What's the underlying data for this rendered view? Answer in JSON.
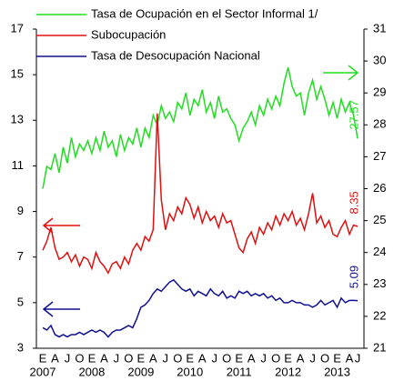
{
  "chart_data": {
    "type": "line",
    "categories": [
      "E",
      null,
      null,
      "A",
      null,
      null,
      "J",
      null,
      null,
      "O",
      null,
      null,
      "E",
      null,
      null,
      "A",
      null,
      null,
      "J",
      null,
      null,
      "O",
      null,
      null,
      "E",
      null,
      null,
      "A",
      null,
      null,
      "J",
      null,
      null,
      "O",
      null,
      null,
      "E",
      null,
      null,
      "A",
      null,
      null,
      "J",
      null,
      null,
      "O",
      null,
      null,
      "E",
      null,
      null,
      "A",
      null,
      null,
      "J",
      null,
      null,
      "O",
      null,
      null,
      "E",
      null,
      null,
      "A",
      null,
      null,
      "J",
      null,
      null,
      "O",
      null,
      null,
      "E",
      null,
      null,
      "A",
      null,
      "J"
    ],
    "years": [
      "2007",
      "2008",
      "2009",
      "2010",
      "2011",
      "2012",
      "2013"
    ],
    "ylim": [
      3,
      17
    ],
    "yticks": [
      3,
      5,
      7,
      9,
      11,
      13,
      15,
      17
    ],
    "y2lim": [
      21,
      31
    ],
    "y2ticks": [
      21,
      22,
      23,
      24,
      25,
      26,
      27,
      28,
      29,
      30,
      31
    ],
    "series": [
      {
        "name": "Tasa de Ocupación en el Sector Informal 1/",
        "color": "#22dd22",
        "axis": "y2",
        "values": [
          26.0,
          26.7,
          26.6,
          27.1,
          26.5,
          27.3,
          26.8,
          27.6,
          27.0,
          27.4,
          27.2,
          27.5,
          27.1,
          27.6,
          27.2,
          27.8,
          27.3,
          27.5,
          27.0,
          27.7,
          27.2,
          27.6,
          27.4,
          27.9,
          27.3,
          27.9,
          27.6,
          28.3,
          28.0,
          28.6,
          28.2,
          28.4,
          28.1,
          28.7,
          28.5,
          29.0,
          28.3,
          28.8,
          28.6,
          29.1,
          28.4,
          28.7,
          28.2,
          28.9,
          28.4,
          28.5,
          28.2,
          28.0,
          27.5,
          27.9,
          28.1,
          28.4,
          28.0,
          28.6,
          28.3,
          28.8,
          28.5,
          28.9,
          28.6,
          29.3,
          29.8,
          29.2,
          28.9,
          29.0,
          28.3,
          29.0,
          29.4,
          28.8,
          29.2,
          28.8,
          28.3,
          28.7,
          28.2,
          28.8,
          28.4,
          28.7,
          28.3,
          27.57
        ]
      },
      {
        "name": "Subocupación",
        "color": "#e01010",
        "values": [
          7.3,
          7.7,
          8.3,
          7.4,
          6.9,
          7.0,
          7.2,
          6.8,
          7.1,
          6.6,
          7.0,
          6.9,
          6.5,
          7.2,
          6.8,
          6.6,
          6.3,
          6.7,
          6.8,
          6.5,
          7.0,
          6.7,
          7.3,
          7.6,
          7.3,
          7.9,
          7.7,
          8.2,
          13.3,
          9.5,
          8.2,
          8.9,
          8.6,
          9.2,
          8.9,
          9.6,
          9.3,
          8.7,
          9.2,
          8.5,
          9.0,
          8.6,
          8.8,
          8.3,
          8.9,
          8.5,
          8.6,
          8.0,
          7.4,
          7.2,
          7.8,
          8.1,
          7.6,
          8.3,
          8.0,
          8.5,
          8.2,
          8.8,
          8.4,
          8.9,
          8.6,
          9.0,
          8.4,
          8.7,
          8.2,
          8.9,
          9.8,
          8.5,
          8.8,
          8.3,
          8.6,
          8.0,
          7.9,
          8.3,
          8.6,
          8.0,
          8.4,
          8.35
        ]
      },
      {
        "name": "Tasa de Desocupación Nacional",
        "color": "#101090",
        "values": [
          3.9,
          3.8,
          4.0,
          3.6,
          3.5,
          3.6,
          3.5,
          3.6,
          3.6,
          3.7,
          3.6,
          3.7,
          3.8,
          3.7,
          3.8,
          3.7,
          3.5,
          3.7,
          3.8,
          3.8,
          3.9,
          4.0,
          3.9,
          4.3,
          4.8,
          4.9,
          5.1,
          5.4,
          5.6,
          5.5,
          5.7,
          5.9,
          6.0,
          5.8,
          5.6,
          5.5,
          5.6,
          5.3,
          5.5,
          5.4,
          5.3,
          5.6,
          5.4,
          5.3,
          5.5,
          5.2,
          5.3,
          5.2,
          5.5,
          5.4,
          5.5,
          5.3,
          5.4,
          5.3,
          5.4,
          5.2,
          5.3,
          5.1,
          5.2,
          5.0,
          5.0,
          5.1,
          5.0,
          5.0,
          4.9,
          4.9,
          4.8,
          4.9,
          5.1,
          4.9,
          5.0,
          5.1,
          4.8,
          5.2,
          5.0,
          5.1,
          5.1,
          5.09
        ]
      }
    ]
  }
}
